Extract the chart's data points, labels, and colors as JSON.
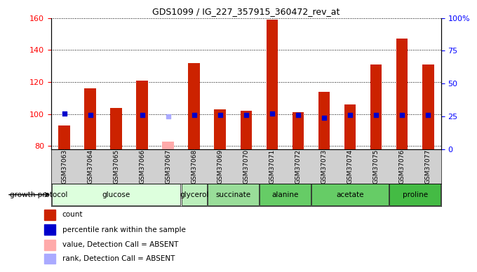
{
  "title": "GDS1099 / IG_227_357915_360472_rev_at",
  "samples": [
    "GSM37063",
    "GSM37064",
    "GSM37065",
    "GSM37066",
    "GSM37067",
    "GSM37068",
    "GSM37069",
    "GSM37070",
    "GSM37071",
    "GSM37072",
    "GSM37073",
    "GSM37074",
    "GSM37075",
    "GSM37076",
    "GSM37077"
  ],
  "counts": [
    93,
    116,
    104,
    121,
    null,
    132,
    103,
    102,
    159,
    101,
    114,
    106,
    131,
    147,
    131
  ],
  "absent_count": [
    null,
    null,
    null,
    null,
    83,
    null,
    null,
    null,
    null,
    null,
    null,
    null,
    null,
    null,
    null
  ],
  "percentile_ranks_pct": [
    27,
    26,
    null,
    26,
    null,
    26,
    26,
    26,
    27,
    26,
    24,
    26,
    26,
    26,
    26
  ],
  "absent_rank_pct": [
    null,
    null,
    null,
    null,
    25,
    null,
    null,
    null,
    null,
    null,
    null,
    null,
    null,
    null,
    null
  ],
  "bar_color": "#cc2200",
  "bar_absent_color": "#ffaaaa",
  "dot_color": "#0000cc",
  "dot_absent_color": "#aaaaff",
  "ylim_left": [
    78,
    160
  ],
  "ylim_right": [
    0,
    100
  ],
  "yticks_left": [
    80,
    100,
    120,
    140,
    160
  ],
  "yticks_right": [
    0,
    25,
    50,
    75,
    100
  ],
  "ytick_labels_right": [
    "0",
    "25",
    "50",
    "75",
    "100%"
  ],
  "groups_def": [
    {
      "name": "glucose",
      "start": 0,
      "end": 4,
      "color": "#ddffdd"
    },
    {
      "name": "glycerol",
      "start": 5,
      "end": 5,
      "color": "#bbeebb"
    },
    {
      "name": "succinate",
      "start": 6,
      "end": 7,
      "color": "#99dd99"
    },
    {
      "name": "alanine",
      "start": 8,
      "end": 9,
      "color": "#66cc66"
    },
    {
      "name": "acetate",
      "start": 10,
      "end": 12,
      "color": "#66cc66"
    },
    {
      "name": "proline",
      "start": 13,
      "end": 14,
      "color": "#44bb44"
    }
  ],
  "growth_protocol_label": "growth protocol",
  "legend_items": [
    {
      "label": "count",
      "color": "#cc2200"
    },
    {
      "label": "percentile rank within the sample",
      "color": "#0000cc"
    },
    {
      "label": "value, Detection Call = ABSENT",
      "color": "#ffaaaa"
    },
    {
      "label": "rank, Detection Call = ABSENT",
      "color": "#aaaaff"
    }
  ]
}
